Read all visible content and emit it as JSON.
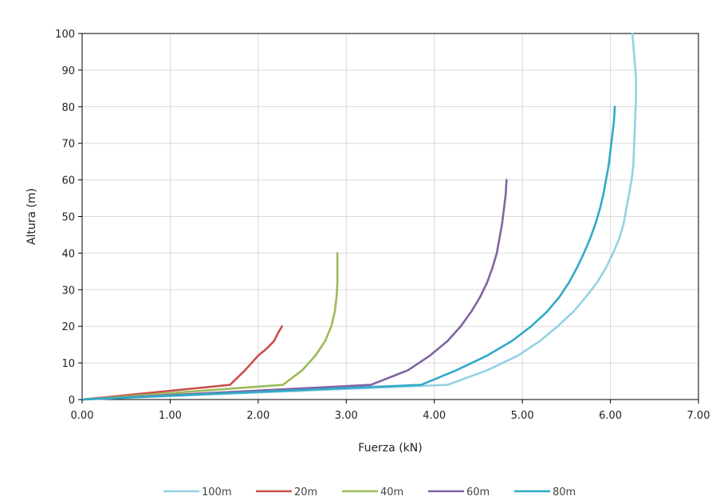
{
  "chart_data": {
    "type": "line",
    "title": "",
    "xlabel": "Fuerza (kN)",
    "ylabel": "Altura (m)",
    "xlim": [
      0,
      7
    ],
    "ylim": [
      0,
      100
    ],
    "x_ticks": [
      0,
      1,
      2,
      3,
      4,
      5,
      6,
      7
    ],
    "x_tick_labels": [
      "0.00",
      "1.00",
      "2.00",
      "3.00",
      "4.00",
      "5.00",
      "6.00",
      "7.00"
    ],
    "y_ticks": [
      0,
      10,
      20,
      30,
      40,
      50,
      60,
      70,
      80,
      90,
      100
    ],
    "y_tick_labels": [
      "0",
      "10",
      "20",
      "30",
      "40",
      "50",
      "60",
      "70",
      "80",
      "90",
      "100"
    ],
    "grid": true,
    "legend_position": "bottom",
    "series": [
      {
        "name": "100m",
        "color": "#92d2e3",
        "points": [
          [
            0,
            0
          ],
          [
            4.15,
            4
          ],
          [
            4.6,
            8
          ],
          [
            4.95,
            12
          ],
          [
            5.2,
            16
          ],
          [
            5.4,
            20
          ],
          [
            5.58,
            24
          ],
          [
            5.72,
            28
          ],
          [
            5.85,
            32
          ],
          [
            5.95,
            36
          ],
          [
            6.03,
            40
          ],
          [
            6.1,
            44
          ],
          [
            6.15,
            48
          ],
          [
            6.18,
            52
          ],
          [
            6.21,
            56
          ],
          [
            6.24,
            60
          ],
          [
            6.26,
            64
          ],
          [
            6.27,
            70
          ],
          [
            6.28,
            76
          ],
          [
            6.29,
            82
          ],
          [
            6.29,
            88
          ],
          [
            6.27,
            94
          ],
          [
            6.25,
            100
          ]
        ]
      },
      {
        "name": "20m",
        "color": "#c9504a",
        "points": [
          [
            0,
            0
          ],
          [
            1.68,
            4
          ],
          [
            1.85,
            8
          ],
          [
            2.0,
            12
          ],
          [
            2.1,
            14
          ],
          [
            2.18,
            16
          ],
          [
            2.22,
            18
          ],
          [
            2.27,
            20
          ]
        ]
      },
      {
        "name": "40m",
        "color": "#9bbb59",
        "points": [
          [
            0,
            0
          ],
          [
            2.28,
            4
          ],
          [
            2.5,
            8
          ],
          [
            2.65,
            12
          ],
          [
            2.76,
            16
          ],
          [
            2.83,
            20
          ],
          [
            2.87,
            24
          ],
          [
            2.89,
            28
          ],
          [
            2.9,
            32
          ],
          [
            2.9,
            36
          ],
          [
            2.9,
            40
          ]
        ]
      },
      {
        "name": "60m",
        "color": "#8064a2",
        "points": [
          [
            0,
            0
          ],
          [
            3.28,
            4
          ],
          [
            3.7,
            8
          ],
          [
            3.95,
            12
          ],
          [
            4.15,
            16
          ],
          [
            4.3,
            20
          ],
          [
            4.42,
            24
          ],
          [
            4.52,
            28
          ],
          [
            4.6,
            32
          ],
          [
            4.66,
            36
          ],
          [
            4.71,
            40
          ],
          [
            4.74,
            44
          ],
          [
            4.77,
            48
          ],
          [
            4.79,
            52
          ],
          [
            4.81,
            56
          ],
          [
            4.82,
            60
          ]
        ]
      },
      {
        "name": "80m",
        "color": "#31a9c8",
        "points": [
          [
            0,
            0
          ],
          [
            3.85,
            4
          ],
          [
            4.25,
            8
          ],
          [
            4.6,
            12
          ],
          [
            4.88,
            16
          ],
          [
            5.1,
            20
          ],
          [
            5.28,
            24
          ],
          [
            5.42,
            28
          ],
          [
            5.53,
            32
          ],
          [
            5.62,
            36
          ],
          [
            5.7,
            40
          ],
          [
            5.77,
            44
          ],
          [
            5.83,
            48
          ],
          [
            5.88,
            52
          ],
          [
            5.92,
            56
          ],
          [
            5.95,
            60
          ],
          [
            5.98,
            64
          ],
          [
            6.0,
            68
          ],
          [
            6.02,
            72
          ],
          [
            6.04,
            76
          ],
          [
            6.05,
            80
          ]
        ]
      }
    ]
  }
}
